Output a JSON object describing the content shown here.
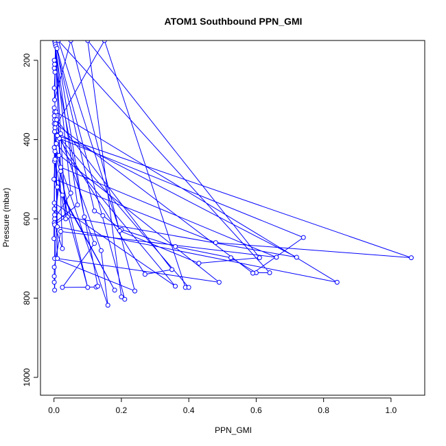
{
  "chart_data": {
    "type": "scatter",
    "title": "ATOM1 Southbound PPN_GMI",
    "xlabel": "PPN_GMI",
    "ylabel": "Pressure (mbar)",
    "xlim": [
      -0.04,
      1.1
    ],
    "ylim": [
      1045,
      150
    ],
    "y_reversed": true,
    "grid": false,
    "xticks": [
      0.0,
      0.2,
      0.4,
      0.6,
      0.8,
      1.0
    ],
    "xtick_labels": [
      "0.0",
      "0.2",
      "0.4",
      "0.6",
      "0.8",
      "1.0"
    ],
    "yticks": [
      200,
      400,
      600,
      800,
      1000
    ],
    "ytick_labels": [
      "200",
      "400",
      "600",
      "800",
      "1000"
    ],
    "series": [
      {
        "color": "#0000ff",
        "marker": "open-circle",
        "points": [
          [
            0.002,
            150
          ],
          [
            0.07,
            565
          ],
          [
            0.001,
            610
          ],
          [
            0.02,
            480
          ],
          [
            0.003,
            155
          ],
          [
            0.05,
            535
          ],
          [
            0.002,
            600
          ],
          [
            0.0,
            650
          ],
          [
            0.004,
            160
          ],
          [
            0.035,
            595
          ],
          [
            0.002,
            615
          ],
          [
            0.025,
            675
          ],
          [
            0.006,
            165
          ],
          [
            0.12,
            580
          ],
          [
            0.145,
            592
          ],
          [
            0.2,
            627
          ],
          [
            0.36,
            670
          ],
          [
            0.525,
            698
          ],
          [
            0.6,
            736
          ],
          [
            0.64,
            736
          ],
          [
            0.013,
            150
          ],
          [
            0.195,
            630
          ],
          [
            0.43,
            712
          ],
          [
            0.61,
            698
          ],
          [
            0.1,
            150
          ],
          [
            0.2,
            797
          ],
          [
            0.21,
            803
          ],
          [
            0.009,
            170
          ],
          [
            0.09,
            595
          ],
          [
            0.12,
            662
          ],
          [
            0.025,
            773
          ],
          [
            0.125,
            772
          ],
          [
            0.13,
            770
          ],
          [
            0.001,
            200
          ],
          [
            0.002,
            210
          ],
          [
            0.001,
            220
          ],
          [
            0.003,
            230
          ],
          [
            0.001,
            270
          ],
          [
            0.002,
            300
          ],
          [
            0.05,
            150
          ],
          [
            0.24,
            782
          ],
          [
            0.002,
            700
          ],
          [
            0.001,
            320
          ],
          [
            0.002,
            330
          ],
          [
            0.001,
            340
          ],
          [
            0.002,
            350
          ],
          [
            0.001,
            360
          ],
          [
            0.003,
            370
          ],
          [
            0.15,
            150
          ],
          [
            0.39,
            773
          ],
          [
            0.4,
            773
          ],
          [
            0.002,
            380
          ],
          [
            0.02,
            385
          ],
          [
            0.016,
            397
          ],
          [
            0.74,
            647
          ],
          [
            0.59,
            737
          ],
          [
            0.005,
            360
          ],
          [
            0.14,
            680
          ],
          [
            0.16,
            818
          ],
          [
            0.001,
            420
          ],
          [
            0.015,
            440
          ],
          [
            0.002,
            455
          ],
          [
            0.008,
            350
          ],
          [
            0.35,
            728
          ],
          [
            0.27,
            740
          ],
          [
            0.01,
            390
          ],
          [
            1.06,
            698
          ],
          [
            0.48,
            660
          ],
          [
            0.002,
            500
          ],
          [
            0.025,
            540
          ],
          [
            0.1,
            773
          ],
          [
            0.003,
            430
          ],
          [
            0.49,
            760
          ],
          [
            0.01,
            700
          ],
          [
            0.006,
            330
          ],
          [
            0.84,
            760
          ],
          [
            0.01,
            620
          ],
          [
            0.002,
            380
          ],
          [
            0.72,
            697
          ],
          [
            0.04,
            595
          ],
          [
            0.02,
            470
          ],
          [
            0.66,
            697
          ],
          [
            0.02,
            632
          ],
          [
            0.001,
            722
          ],
          [
            0.001,
            745
          ],
          [
            0.001,
            760
          ],
          [
            0.002,
            780
          ],
          [
            0.01,
            520
          ],
          [
            0.18,
            780
          ],
          [
            0.0,
            500
          ],
          [
            0.007,
            410
          ],
          [
            0.36,
            770
          ],
          [
            0.001,
            560
          ],
          [
            0.003,
            450
          ],
          [
            0.035,
            600
          ],
          [
            0.001,
            575
          ],
          [
            0.002,
            590
          ]
        ]
      }
    ]
  }
}
